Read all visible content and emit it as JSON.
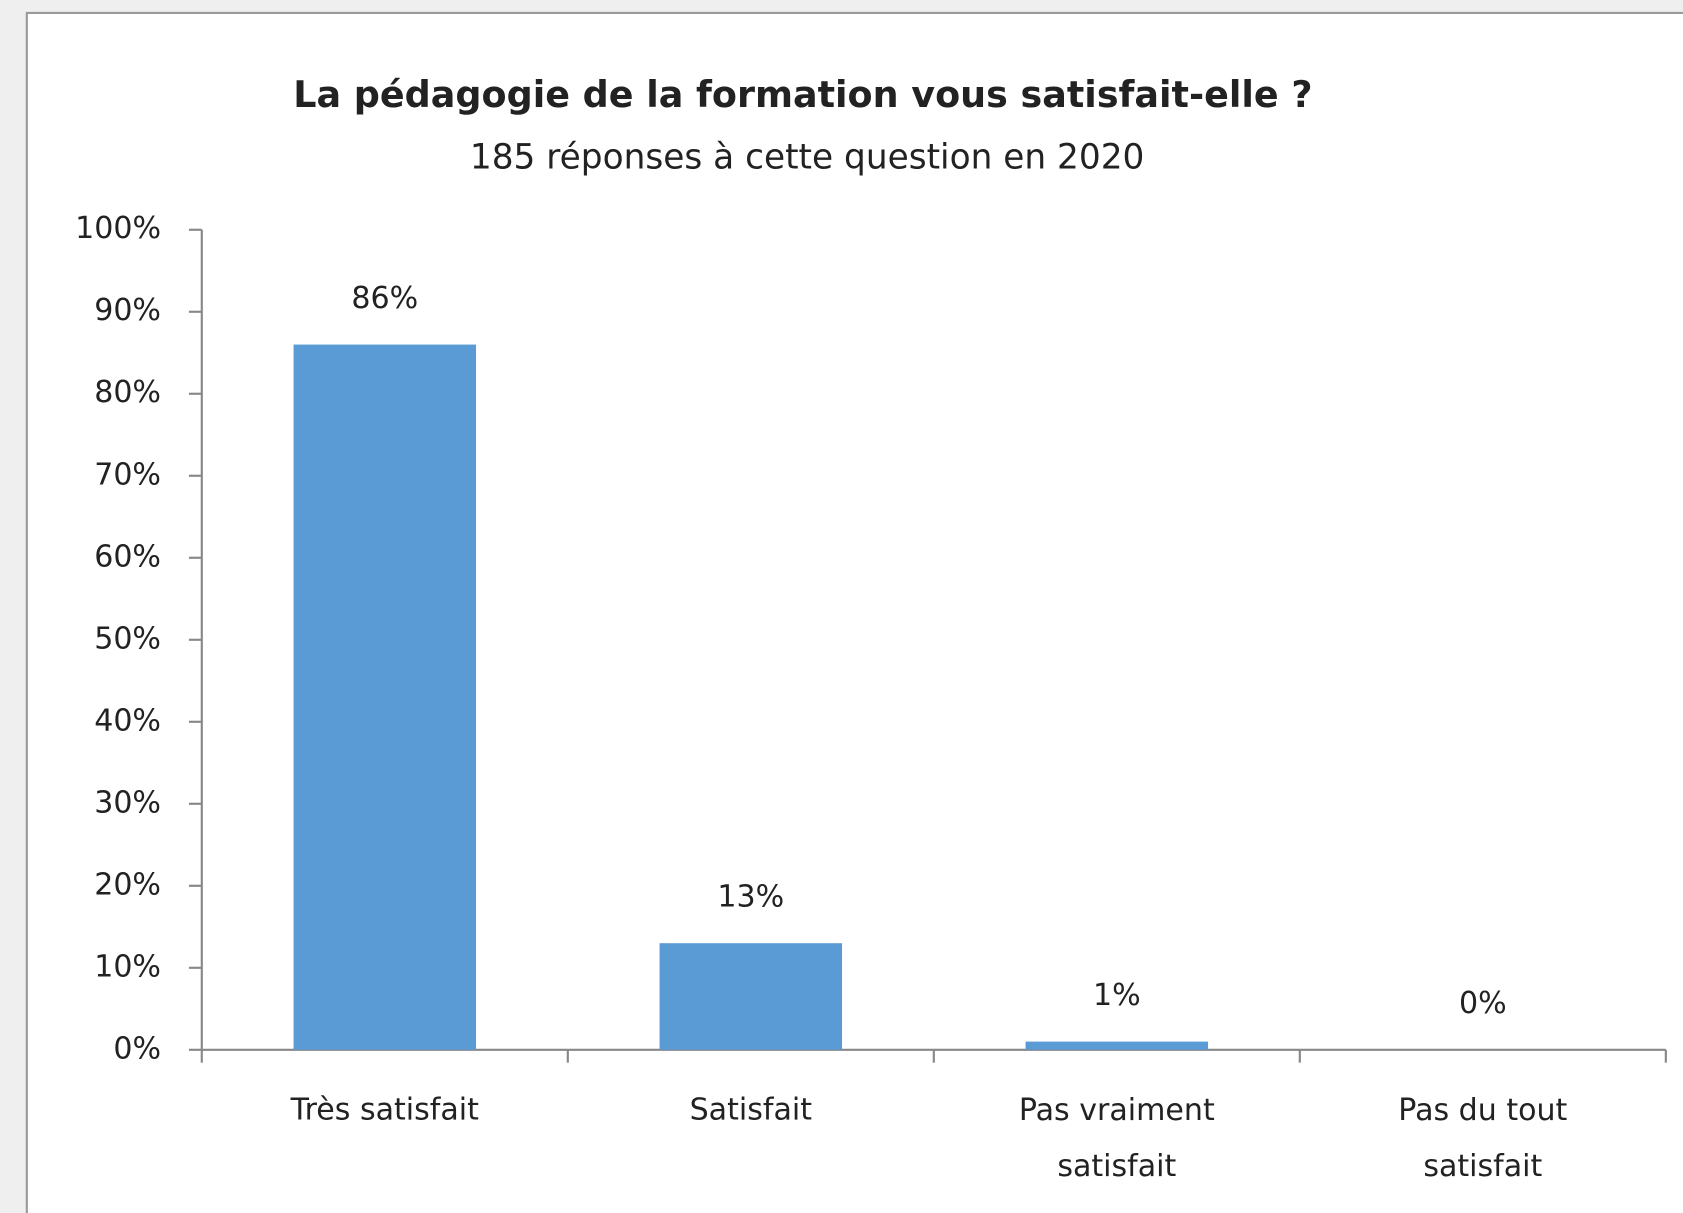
{
  "chart_data": {
    "type": "bar",
    "title": "La pédagogie de la formation vous satisfait-elle ?",
    "subtitle": "185 réponses à cette question en 2020",
    "categories": [
      "Très satisfait",
      "Satisfait",
      "Pas vraiment satisfait",
      "Pas du tout satisfait"
    ],
    "values": [
      86,
      13,
      1,
      0
    ],
    "value_labels": [
      "86%",
      "13%",
      "1%",
      "0%"
    ],
    "color": "#5b9bd5",
    "ylim": [
      0,
      100
    ],
    "yticks": [
      {
        "value": 0,
        "label": "0%"
      },
      {
        "value": 10,
        "label": "10%"
      },
      {
        "value": 20,
        "label": "20%"
      },
      {
        "value": 30,
        "label": "30%"
      },
      {
        "value": 40,
        "label": "40%"
      },
      {
        "value": 50,
        "label": "50%"
      },
      {
        "value": 60,
        "label": "60%"
      },
      {
        "value": 70,
        "label": "70%"
      },
      {
        "value": 80,
        "label": "80%"
      },
      {
        "value": 90,
        "label": "90%"
      },
      {
        "value": 100,
        "label": "100%"
      }
    ],
    "grid": false
  }
}
